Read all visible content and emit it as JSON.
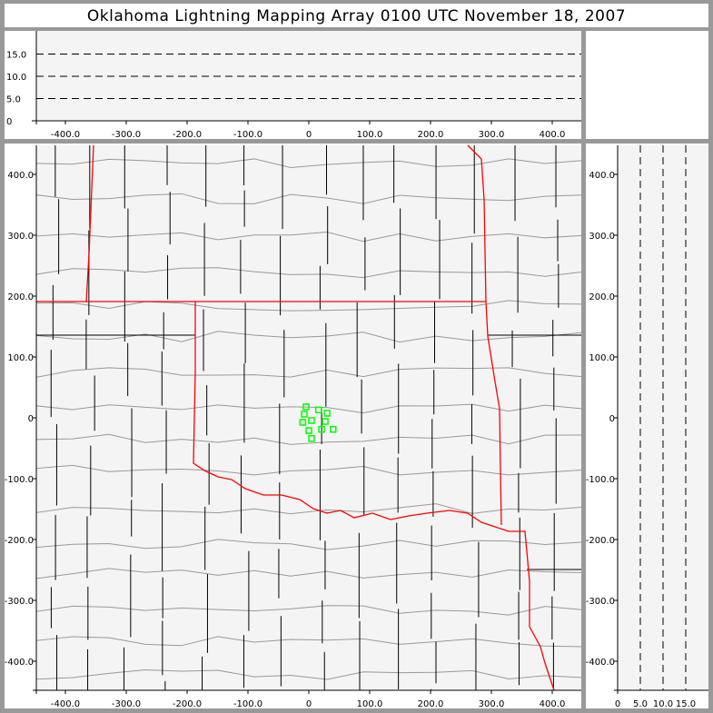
{
  "title": "Oklahoma Lightning Mapping Array   0100 UTC  November 18, 2007",
  "colors": {
    "background": "#f4f4f4",
    "frame": "#999999",
    "state_border": "#ff0000",
    "county_border": "#999999",
    "source_marker": "#00ff00"
  },
  "height_panel": {
    "y_ticks": [
      "0",
      "5.0",
      "10.0",
      "15.0"
    ],
    "y_values": [
      0,
      5,
      10,
      15
    ],
    "x_ticks": [
      "-400.0",
      "-300.0",
      "-200.0",
      "-100.0",
      "0",
      "100.0",
      "200.0",
      "300.0",
      "400.0"
    ],
    "dashed_levels": [
      5,
      10,
      15
    ]
  },
  "plan_view": {
    "x_ticks": [
      "-400.0",
      "-300.0",
      "-200.0",
      "-100.0",
      "0",
      "100.0",
      "200.0",
      "300.0",
      "400.0"
    ],
    "x_values": [
      -400,
      -300,
      -200,
      -100,
      0,
      100,
      200,
      300,
      400
    ],
    "y_ticks": [
      "400.0",
      "300.0",
      "200.0",
      "100.0",
      "0",
      "-100.0",
      "-200.0",
      "-300.0",
      "-400.0"
    ],
    "y_values": [
      400,
      300,
      200,
      100,
      0,
      -100,
      -200,
      -300,
      -400
    ],
    "sources": [
      [
        -4.5,
        18
      ],
      [
        16,
        13
      ],
      [
        30,
        7.5
      ],
      [
        -7.5,
        6
      ],
      [
        4.5,
        -4.5
      ],
      [
        -10,
        -7.5
      ],
      [
        27,
        -6
      ],
      [
        0,
        -21
      ],
      [
        21,
        -19
      ],
      [
        40,
        -19
      ],
      [
        4.5,
        -34
      ]
    ]
  },
  "side_panel": {
    "x_ticks": [
      "0",
      "5.0",
      "10.0",
      "15.0"
    ],
    "x_values": [
      0,
      5,
      10,
      15
    ],
    "dashed_levels": [
      5,
      10,
      15
    ]
  }
}
